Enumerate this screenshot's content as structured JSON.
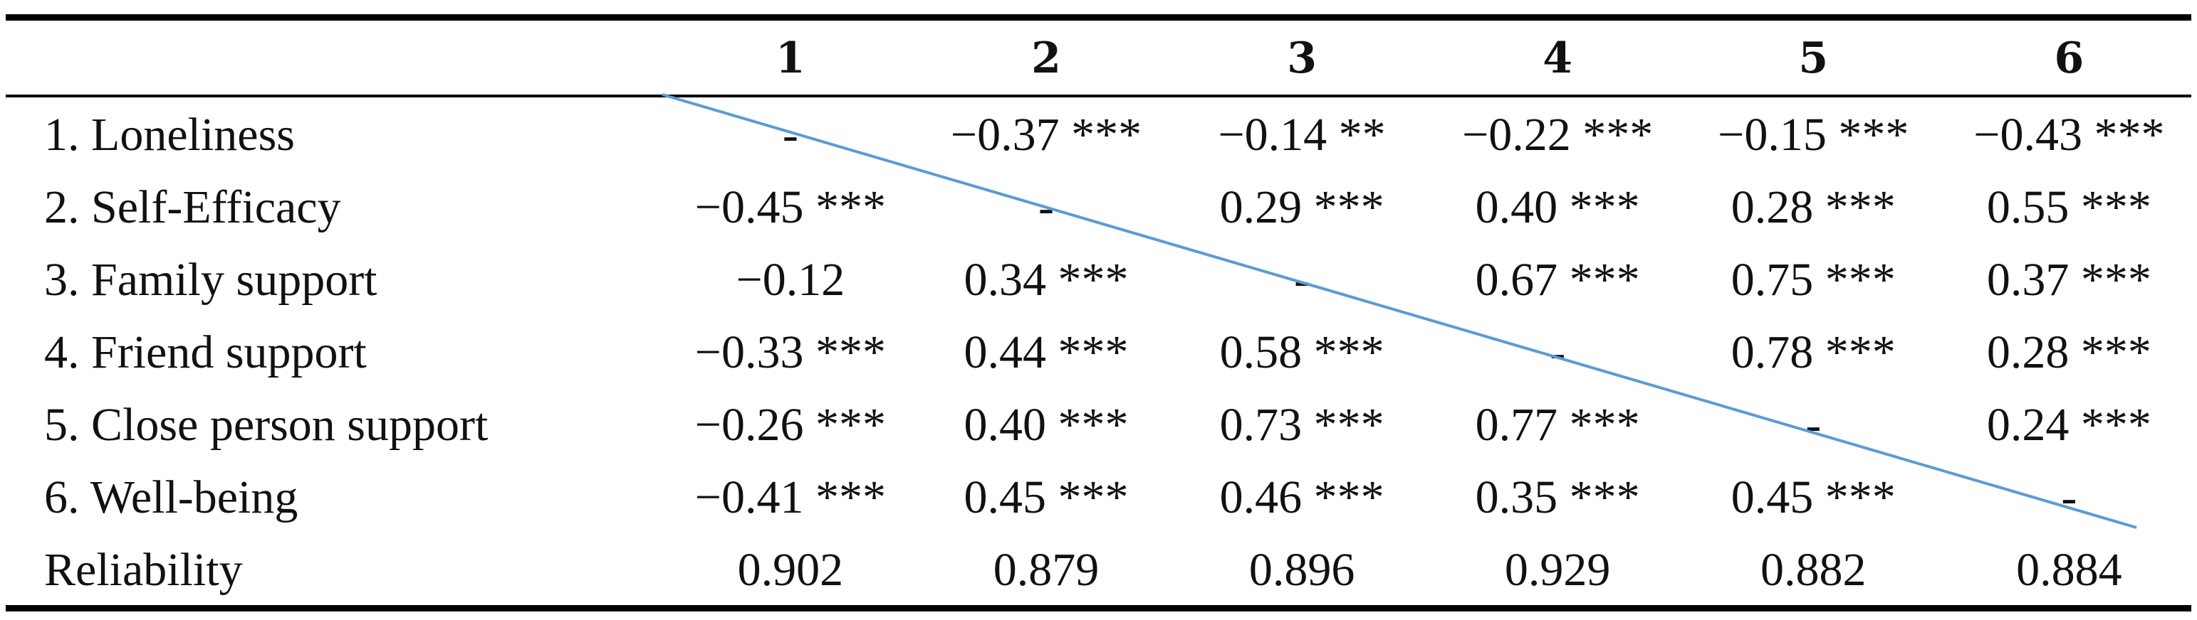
{
  "table": {
    "columns": [
      "",
      "1",
      "2",
      "3",
      "4",
      "5",
      "6"
    ],
    "rows": [
      {
        "label": "1. Loneliness",
        "cells": [
          "-",
          "−0.37 ***",
          "−0.14 **",
          "−0.22 ***",
          "−0.15 ***",
          "−0.43 ***"
        ]
      },
      {
        "label": "2. Self-Efficacy",
        "cells": [
          "−0.45 ***",
          "-",
          "0.29 ***",
          "0.40 ***",
          "0.28 ***",
          "0.55 ***"
        ]
      },
      {
        "label": "3. Family support",
        "cells": [
          "−0.12",
          "0.34 ***",
          "-",
          "0.67 ***",
          "0.75 ***",
          "0.37 ***"
        ]
      },
      {
        "label": "4. Friend support",
        "cells": [
          "−0.33 ***",
          "0.44 ***",
          "0.58 ***",
          "-",
          "0.78 ***",
          "0.28 ***"
        ]
      },
      {
        "label": "5. Close person support",
        "cells": [
          "−0.26 ***",
          "0.40 ***",
          "0.73 ***",
          "0.77 ***",
          "-",
          "0.24 ***"
        ]
      },
      {
        "label": "6. Well-being",
        "cells": [
          "−0.41 ***",
          "0.45 ***",
          "0.46 ***",
          "0.35 ***",
          "0.45 ***",
          "-"
        ]
      },
      {
        "label": "Reliability",
        "cells": [
          "0.902",
          "0.879",
          "0.896",
          "0.929",
          "0.882",
          "0.884"
        ]
      }
    ]
  },
  "diagonal_line_color": "#5b9bd5",
  "rule_color": "#000000"
}
